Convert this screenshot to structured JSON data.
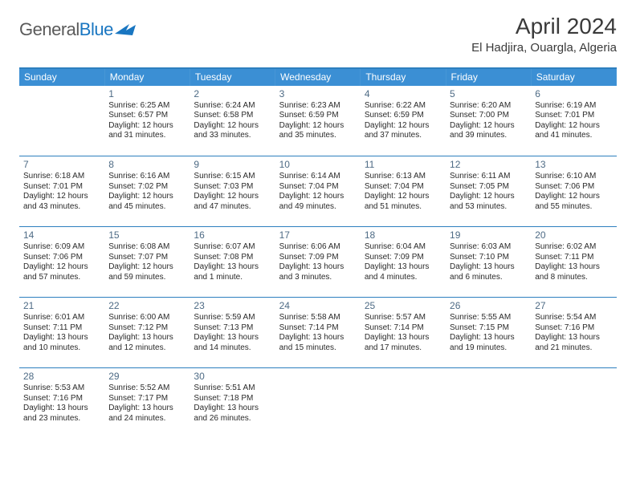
{
  "logo": {
    "general": "General",
    "blue": "Blue"
  },
  "title": "April 2024",
  "location": "El Hadjira, Ouargla, Algeria",
  "colors": {
    "header_bg": "#3b8fd4",
    "header_text": "#ffffff",
    "border": "#2d7fbf",
    "daynum": "#4e6b85",
    "body_text": "#2a2a2a",
    "logo_blue": "#1976c1"
  },
  "day_headers": [
    "Sunday",
    "Monday",
    "Tuesday",
    "Wednesday",
    "Thursday",
    "Friday",
    "Saturday"
  ],
  "weeks": [
    [
      null,
      {
        "n": "1",
        "sr": "6:25 AM",
        "ss": "6:57 PM",
        "dl": "12 hours and 31 minutes."
      },
      {
        "n": "2",
        "sr": "6:24 AM",
        "ss": "6:58 PM",
        "dl": "12 hours and 33 minutes."
      },
      {
        "n": "3",
        "sr": "6:23 AM",
        "ss": "6:59 PM",
        "dl": "12 hours and 35 minutes."
      },
      {
        "n": "4",
        "sr": "6:22 AM",
        "ss": "6:59 PM",
        "dl": "12 hours and 37 minutes."
      },
      {
        "n": "5",
        "sr": "6:20 AM",
        "ss": "7:00 PM",
        "dl": "12 hours and 39 minutes."
      },
      {
        "n": "6",
        "sr": "6:19 AM",
        "ss": "7:01 PM",
        "dl": "12 hours and 41 minutes."
      }
    ],
    [
      {
        "n": "7",
        "sr": "6:18 AM",
        "ss": "7:01 PM",
        "dl": "12 hours and 43 minutes."
      },
      {
        "n": "8",
        "sr": "6:16 AM",
        "ss": "7:02 PM",
        "dl": "12 hours and 45 minutes."
      },
      {
        "n": "9",
        "sr": "6:15 AM",
        "ss": "7:03 PM",
        "dl": "12 hours and 47 minutes."
      },
      {
        "n": "10",
        "sr": "6:14 AM",
        "ss": "7:04 PM",
        "dl": "12 hours and 49 minutes."
      },
      {
        "n": "11",
        "sr": "6:13 AM",
        "ss": "7:04 PM",
        "dl": "12 hours and 51 minutes."
      },
      {
        "n": "12",
        "sr": "6:11 AM",
        "ss": "7:05 PM",
        "dl": "12 hours and 53 minutes."
      },
      {
        "n": "13",
        "sr": "6:10 AM",
        "ss": "7:06 PM",
        "dl": "12 hours and 55 minutes."
      }
    ],
    [
      {
        "n": "14",
        "sr": "6:09 AM",
        "ss": "7:06 PM",
        "dl": "12 hours and 57 minutes."
      },
      {
        "n": "15",
        "sr": "6:08 AM",
        "ss": "7:07 PM",
        "dl": "12 hours and 59 minutes."
      },
      {
        "n": "16",
        "sr": "6:07 AM",
        "ss": "7:08 PM",
        "dl": "13 hours and 1 minute."
      },
      {
        "n": "17",
        "sr": "6:06 AM",
        "ss": "7:09 PM",
        "dl": "13 hours and 3 minutes."
      },
      {
        "n": "18",
        "sr": "6:04 AM",
        "ss": "7:09 PM",
        "dl": "13 hours and 4 minutes."
      },
      {
        "n": "19",
        "sr": "6:03 AM",
        "ss": "7:10 PM",
        "dl": "13 hours and 6 minutes."
      },
      {
        "n": "20",
        "sr": "6:02 AM",
        "ss": "7:11 PM",
        "dl": "13 hours and 8 minutes."
      }
    ],
    [
      {
        "n": "21",
        "sr": "6:01 AM",
        "ss": "7:11 PM",
        "dl": "13 hours and 10 minutes."
      },
      {
        "n": "22",
        "sr": "6:00 AM",
        "ss": "7:12 PM",
        "dl": "13 hours and 12 minutes."
      },
      {
        "n": "23",
        "sr": "5:59 AM",
        "ss": "7:13 PM",
        "dl": "13 hours and 14 minutes."
      },
      {
        "n": "24",
        "sr": "5:58 AM",
        "ss": "7:14 PM",
        "dl": "13 hours and 15 minutes."
      },
      {
        "n": "25",
        "sr": "5:57 AM",
        "ss": "7:14 PM",
        "dl": "13 hours and 17 minutes."
      },
      {
        "n": "26",
        "sr": "5:55 AM",
        "ss": "7:15 PM",
        "dl": "13 hours and 19 minutes."
      },
      {
        "n": "27",
        "sr": "5:54 AM",
        "ss": "7:16 PM",
        "dl": "13 hours and 21 minutes."
      }
    ],
    [
      {
        "n": "28",
        "sr": "5:53 AM",
        "ss": "7:16 PM",
        "dl": "13 hours and 23 minutes."
      },
      {
        "n": "29",
        "sr": "5:52 AM",
        "ss": "7:17 PM",
        "dl": "13 hours and 24 minutes."
      },
      {
        "n": "30",
        "sr": "5:51 AM",
        "ss": "7:18 PM",
        "dl": "13 hours and 26 minutes."
      },
      null,
      null,
      null,
      null
    ]
  ],
  "labels": {
    "sunrise": "Sunrise:",
    "sunset": "Sunset:",
    "daylight": "Daylight:"
  }
}
